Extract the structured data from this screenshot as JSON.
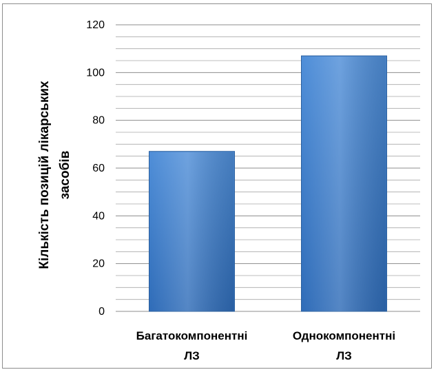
{
  "chart_data": {
    "type": "bar",
    "categories": [
      [
        "Багатокомпонентні",
        "ЛЗ"
      ],
      [
        "Однокомпонентні",
        "ЛЗ"
      ]
    ],
    "values": [
      67,
      107
    ],
    "ylabel": [
      "Кількість позицій лікарських",
      "засобів"
    ],
    "ylim": [
      0,
      120
    ],
    "yticks": [
      0,
      20,
      40,
      60,
      80,
      100,
      120
    ],
    "minor_gridlines_per_major": 4,
    "grid": true,
    "legend": "none",
    "colors": {
      "bar_fill_top": "#4f8ed8",
      "bar_fill_bottom": "#2f6cb8",
      "bar_stroke": "#2a5f9e",
      "gridline": "#8c8c8c",
      "axis": "#8c8c8c"
    }
  }
}
